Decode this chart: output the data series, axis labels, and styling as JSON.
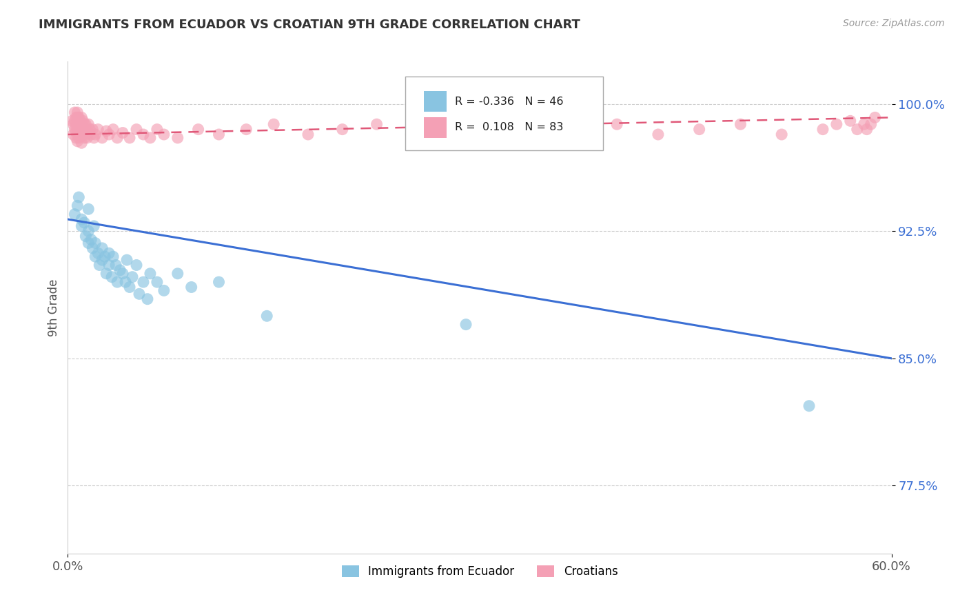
{
  "title": "IMMIGRANTS FROM ECUADOR VS CROATIAN 9TH GRADE CORRELATION CHART",
  "source_text": "Source: ZipAtlas.com",
  "xlabel_label": "Immigrants from Ecuador",
  "xlabel2_label": "Croatians",
  "ylabel_label": "9th Grade",
  "xlim": [
    0.0,
    0.6
  ],
  "ylim": [
    0.735,
    1.025
  ],
  "xticks": [
    0.0,
    0.6
  ],
  "xtick_labels": [
    "0.0%",
    "60.0%"
  ],
  "ytick_positions": [
    0.775,
    0.85,
    0.925,
    1.0
  ],
  "ytick_labels": [
    "77.5%",
    "85.0%",
    "92.5%",
    "100.0%"
  ],
  "blue_R": -0.336,
  "blue_N": 46,
  "pink_R": 0.108,
  "pink_N": 83,
  "blue_color": "#89c4e1",
  "pink_color": "#f4a0b5",
  "blue_line_color": "#3b6fd4",
  "pink_line_color": "#e05878",
  "title_color": "#333333",
  "source_color": "#999999",
  "grid_color": "#cccccc",
  "blue_scatter_x": [
    0.005,
    0.007,
    0.008,
    0.01,
    0.01,
    0.012,
    0.013,
    0.015,
    0.015,
    0.015,
    0.017,
    0.018,
    0.019,
    0.02,
    0.02,
    0.022,
    0.023,
    0.025,
    0.025,
    0.027,
    0.028,
    0.03,
    0.03,
    0.032,
    0.033,
    0.035,
    0.036,
    0.038,
    0.04,
    0.042,
    0.043,
    0.045,
    0.047,
    0.05,
    0.052,
    0.055,
    0.058,
    0.06,
    0.065,
    0.07,
    0.08,
    0.09,
    0.11,
    0.145,
    0.29,
    0.54
  ],
  "blue_scatter_y": [
    0.935,
    0.94,
    0.945,
    0.928,
    0.932,
    0.93,
    0.922,
    0.938,
    0.925,
    0.918,
    0.92,
    0.915,
    0.928,
    0.91,
    0.918,
    0.912,
    0.905,
    0.915,
    0.908,
    0.91,
    0.9,
    0.912,
    0.905,
    0.898,
    0.91,
    0.905,
    0.895,
    0.902,
    0.9,
    0.895,
    0.908,
    0.892,
    0.898,
    0.905,
    0.888,
    0.895,
    0.885,
    0.9,
    0.895,
    0.89,
    0.9,
    0.892,
    0.895,
    0.875,
    0.87,
    0.822
  ],
  "pink_scatter_x": [
    0.003,
    0.004,
    0.004,
    0.005,
    0.005,
    0.005,
    0.006,
    0.006,
    0.006,
    0.006,
    0.007,
    0.007,
    0.007,
    0.007,
    0.007,
    0.007,
    0.008,
    0.008,
    0.008,
    0.008,
    0.009,
    0.009,
    0.009,
    0.01,
    0.01,
    0.01,
    0.01,
    0.01,
    0.011,
    0.011,
    0.012,
    0.012,
    0.012,
    0.013,
    0.013,
    0.014,
    0.014,
    0.015,
    0.015,
    0.016,
    0.017,
    0.018,
    0.019,
    0.02,
    0.022,
    0.025,
    0.028,
    0.03,
    0.033,
    0.036,
    0.04,
    0.045,
    0.05,
    0.055,
    0.06,
    0.065,
    0.07,
    0.08,
    0.095,
    0.11,
    0.13,
    0.15,
    0.175,
    0.2,
    0.225,
    0.25,
    0.28,
    0.31,
    0.34,
    0.37,
    0.4,
    0.43,
    0.46,
    0.49,
    0.52,
    0.55,
    0.56,
    0.57,
    0.575,
    0.58,
    0.582,
    0.585,
    0.588
  ],
  "pink_scatter_y": [
    0.99,
    0.988,
    0.982,
    0.995,
    0.99,
    0.985,
    0.992,
    0.988,
    0.984,
    0.98,
    0.995,
    0.992,
    0.988,
    0.985,
    0.982,
    0.978,
    0.992,
    0.988,
    0.985,
    0.98,
    0.99,
    0.986,
    0.982,
    0.992,
    0.988,
    0.985,
    0.981,
    0.977,
    0.99,
    0.985,
    0.988,
    0.984,
    0.98,
    0.988,
    0.982,
    0.985,
    0.98,
    0.988,
    0.983,
    0.985,
    0.982,
    0.985,
    0.98,
    0.982,
    0.985,
    0.98,
    0.984,
    0.982,
    0.985,
    0.98,
    0.983,
    0.98,
    0.985,
    0.982,
    0.98,
    0.985,
    0.982,
    0.98,
    0.985,
    0.982,
    0.985,
    0.988,
    0.982,
    0.985,
    0.988,
    0.982,
    0.985,
    0.98,
    0.985,
    0.982,
    0.988,
    0.982,
    0.985,
    0.988,
    0.982,
    0.985,
    0.988,
    0.99,
    0.985,
    0.988,
    0.985,
    0.988,
    0.992
  ],
  "blue_trend_x": [
    0.0,
    0.6
  ],
  "blue_trend_y": [
    0.932,
    0.85
  ],
  "pink_trend_x": [
    0.0,
    0.6
  ],
  "pink_trend_y": [
    0.982,
    0.992
  ]
}
